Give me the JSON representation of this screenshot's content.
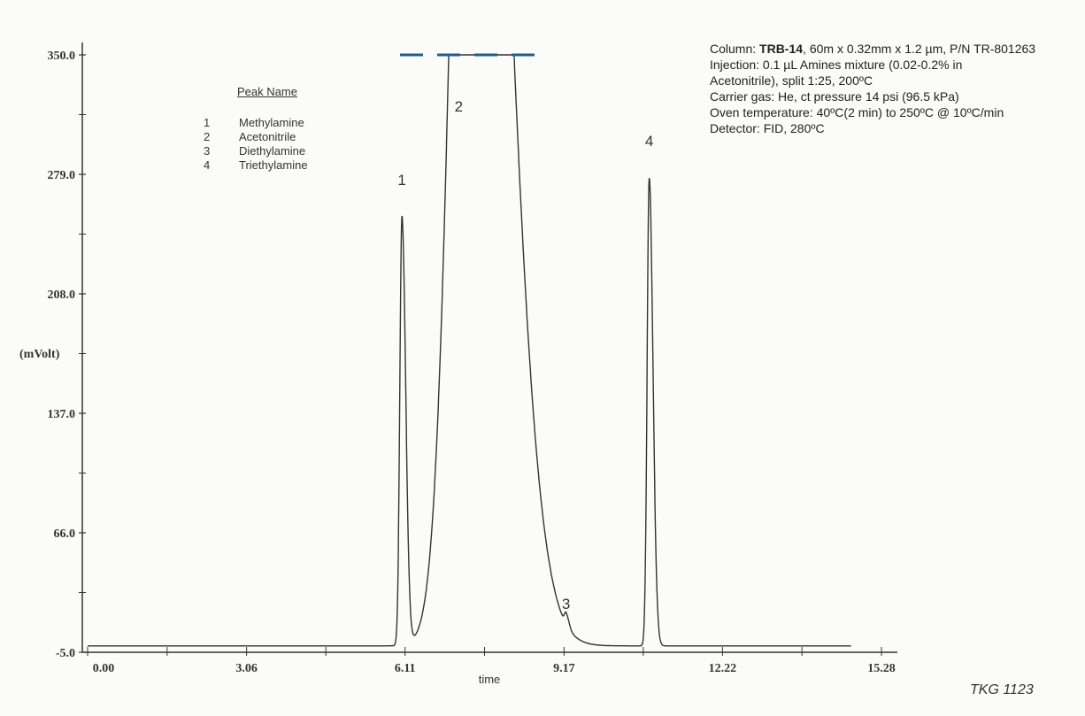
{
  "chart_data": {
    "type": "line",
    "title": "",
    "xlabel": "time",
    "ylabel": "(mVolt)",
    "xlim": [
      0.0,
      15.28
    ],
    "ylim": [
      -5.0,
      350.0
    ],
    "x_ticks": [
      "0.00",
      "3.06",
      "6.11",
      "9.17",
      "12.22",
      "15.28"
    ],
    "y_ticks": [
      "-5.0",
      "66.0",
      "137.0",
      "208.0",
      "279.0",
      "350.0"
    ],
    "grid": false,
    "legend": {
      "header": "Peak Name",
      "placement": "top-left",
      "entries": [
        {
          "num": "1",
          "name": "Methylamine"
        },
        {
          "num": "2",
          "name": "Acetonitrile"
        },
        {
          "num": "3",
          "name": "Diethylamine"
        },
        {
          "num": "4",
          "name": "Triethylamine"
        }
      ]
    },
    "peaks": [
      {
        "label": "1",
        "name": "Methylamine",
        "rt": 6.05,
        "height": 255,
        "width": 0.04
      },
      {
        "label": "2",
        "name": "Acetonitrile",
        "rt": 7.4,
        "height": 800,
        "width": 0.35
      },
      {
        "label": "3",
        "name": "Diethylamine",
        "rt": 9.21,
        "height": 7,
        "width": 0.03
      },
      {
        "label": "4",
        "name": "Triethylamine",
        "rt": 10.81,
        "height": 278,
        "width": 0.04
      }
    ],
    "baseline": -1.2,
    "offscale_indicator_color": "#1f5f8b",
    "trace_color": "#333333"
  },
  "conditions": {
    "column_prefix": "Column: ",
    "column_name": "TRB-14",
    "column_rest": ", 60m x 0.32mm x 1.2 µm, P/N TR-801263",
    "lines": [
      "Injection: 0.1 µL Amines mixture (0.02-0.2% in",
      "Acetonitrile), split 1:25, 200ºC",
      "Carrier gas: He, ct pressure 14 psi (96.5 kPa)",
      "Oven temperature: 40ºC(2 min) to 250ºC  @ 10ºC/min",
      "Detector: FID, 280ºC"
    ]
  },
  "footer": "TKG 1123"
}
